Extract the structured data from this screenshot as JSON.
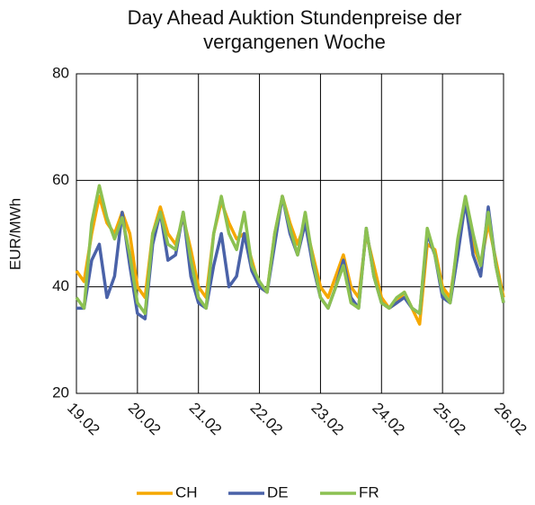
{
  "chart_data": {
    "type": "line",
    "title": "Day Ahead Auktion Stundenpreise der vergangenen Woche",
    "y_label": "EUR/MWh",
    "x": [
      0,
      0.125,
      0.25,
      0.375,
      0.5,
      0.625,
      0.75,
      0.875,
      1,
      1.125,
      1.25,
      1.375,
      1.5,
      1.625,
      1.75,
      1.875,
      2,
      2.125,
      2.25,
      2.375,
      2.5,
      2.625,
      2.75,
      2.875,
      3,
      3.125,
      3.25,
      3.375,
      3.5,
      3.625,
      3.75,
      3.875,
      4,
      4.125,
      4.25,
      4.375,
      4.5,
      4.625,
      4.75,
      4.875,
      5,
      5.125,
      5.25,
      5.375,
      5.5,
      5.625,
      5.75,
      5.875,
      6,
      6.125,
      6.25,
      6.375,
      6.5,
      6.625,
      6.75,
      6.875,
      7
    ],
    "xlim": [
      0,
      7
    ],
    "xticks": [
      {
        "value": 0,
        "label": "19.02"
      },
      {
        "value": 1,
        "label": "20.02"
      },
      {
        "value": 2,
        "label": "21.02"
      },
      {
        "value": 3,
        "label": "22.02"
      },
      {
        "value": 4,
        "label": "23.02"
      },
      {
        "value": 5,
        "label": "24.02"
      },
      {
        "value": 6,
        "label": "25.02"
      },
      {
        "value": 7,
        "label": "26.02"
      }
    ],
    "ylim": [
      20,
      80
    ],
    "yticks": [
      20,
      40,
      60,
      80
    ],
    "grid": true,
    "legend": "bottom",
    "series": [
      {
        "name": "CH",
        "color": "#f5a800",
        "values": [
          43,
          41,
          50,
          57,
          52,
          50,
          54,
          50,
          40,
          38,
          50,
          55,
          50,
          48,
          53,
          47,
          40,
          38,
          50,
          56,
          52,
          49,
          50,
          45,
          40,
          39,
          50,
          57,
          52,
          48,
          52,
          46,
          40,
          38,
          42,
          46,
          40,
          38,
          50,
          44,
          38,
          36,
          37,
          39,
          36,
          33,
          48,
          47,
          40,
          38,
          48,
          56,
          48,
          44,
          52,
          45,
          38
        ]
      },
      {
        "name": "DE",
        "color": "#4a62a8",
        "values": [
          36,
          36,
          45,
          48,
          38,
          42,
          54,
          44,
          35,
          34,
          48,
          54,
          45,
          46,
          54,
          42,
          37,
          36,
          44,
          50,
          40,
          42,
          50,
          43,
          40,
          39,
          48,
          57,
          50,
          46,
          52,
          44,
          38,
          36,
          40,
          45,
          38,
          36,
          51,
          42,
          37,
          36,
          37,
          38,
          36,
          35,
          50,
          46,
          38,
          37,
          46,
          56,
          46,
          42,
          55,
          44,
          37
        ]
      },
      {
        "name": "FR",
        "color": "#8cc152",
        "values": [
          38,
          36,
          52,
          59,
          53,
          49,
          53,
          46,
          37,
          35,
          50,
          54,
          48,
          47,
          54,
          45,
          38,
          36,
          50,
          57,
          50,
          47,
          54,
          44,
          41,
          39,
          50,
          57,
          51,
          46,
          54,
          45,
          38,
          36,
          40,
          44,
          37,
          36,
          51,
          42,
          37,
          36,
          38,
          39,
          36,
          35,
          51,
          46,
          39,
          37,
          49,
          57,
          50,
          44,
          54,
          44,
          37
        ]
      }
    ]
  }
}
